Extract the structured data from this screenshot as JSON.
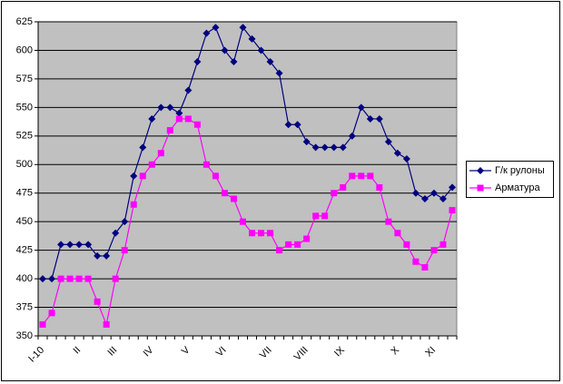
{
  "chart_data": {
    "type": "line",
    "categories": [
      "I-10",
      null,
      null,
      null,
      "II",
      null,
      null,
      null,
      "III",
      null,
      null,
      null,
      "IV",
      null,
      null,
      null,
      "V",
      null,
      null,
      null,
      "VI",
      null,
      null,
      null,
      null,
      "VII",
      null,
      null,
      null,
      "VIII",
      null,
      null,
      null,
      "IX",
      null,
      null,
      null,
      null,
      null,
      "X",
      null,
      null,
      null,
      "XI",
      null,
      null
    ],
    "series": [
      {
        "name": "Г/к рулоны",
        "color": "#000080",
        "marker": "diamond",
        "values": [
          400,
          400,
          430,
          430,
          430,
          430,
          420,
          420,
          440,
          450,
          490,
          515,
          540,
          550,
          550,
          545,
          565,
          590,
          615,
          620,
          600,
          590,
          620,
          610,
          600,
          590,
          580,
          535,
          535,
          520,
          515,
          515,
          515,
          515,
          525,
          550,
          540,
          540,
          520,
          510,
          505,
          475,
          470,
          475,
          470,
          480
        ]
      },
      {
        "name": "Арматура",
        "color": "#ff00ff",
        "marker": "square",
        "values": [
          360,
          370,
          400,
          400,
          400,
          400,
          380,
          360,
          400,
          425,
          465,
          490,
          500,
          510,
          530,
          540,
          540,
          535,
          500,
          490,
          475,
          470,
          450,
          440,
          440,
          440,
          425,
          430,
          430,
          435,
          455,
          455,
          475,
          480,
          490,
          490,
          490,
          480,
          450,
          440,
          430,
          415,
          410,
          425,
          430,
          460
        ]
      }
    ],
    "ylim": [
      350,
      625
    ],
    "yticks": [
      350,
      375,
      400,
      425,
      450,
      475,
      500,
      525,
      550,
      575,
      600,
      625
    ],
    "grid": true,
    "plot_background": "#c0c0c0",
    "legend": "right"
  }
}
